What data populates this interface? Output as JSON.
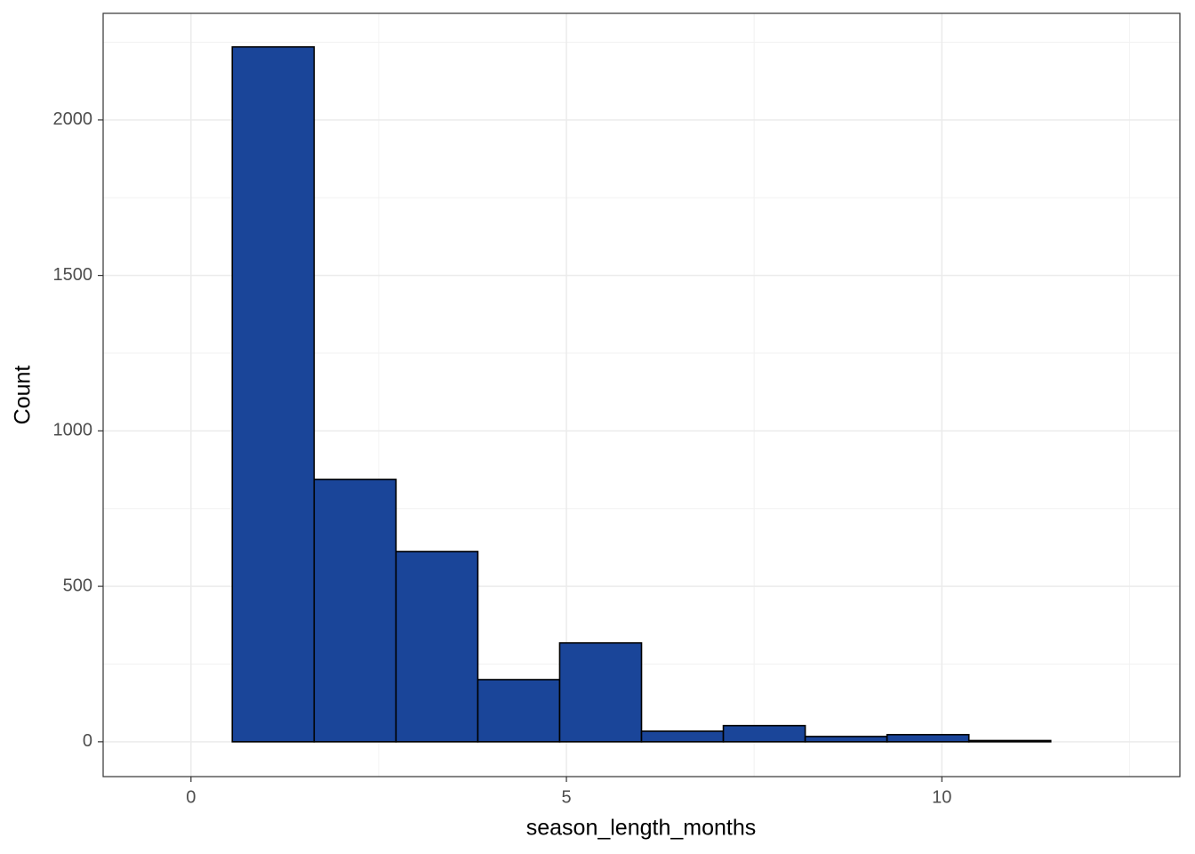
{
  "chart_data": {
    "type": "histogram",
    "x_label": "season_length_months",
    "y_label": "Count",
    "bins": [
      -0.55,
      0.55,
      1.64,
      2.73,
      3.82,
      4.91,
      6.0,
      7.09,
      8.18,
      9.27,
      10.36,
      11.45,
      12.55
    ],
    "values": [
      0,
      2235,
      844,
      612,
      200,
      318,
      34,
      52,
      17,
      23,
      4,
      0
    ],
    "color": "#1a4599",
    "edge_color": "#000000",
    "xlim": [
      -1.17,
      13.17
    ],
    "xticks": [
      0,
      5,
      10
    ],
    "ylim": [
      -112,
      2343
    ],
    "yticks": [
      0,
      500,
      1000,
      1500,
      2000
    ],
    "grid": true
  }
}
